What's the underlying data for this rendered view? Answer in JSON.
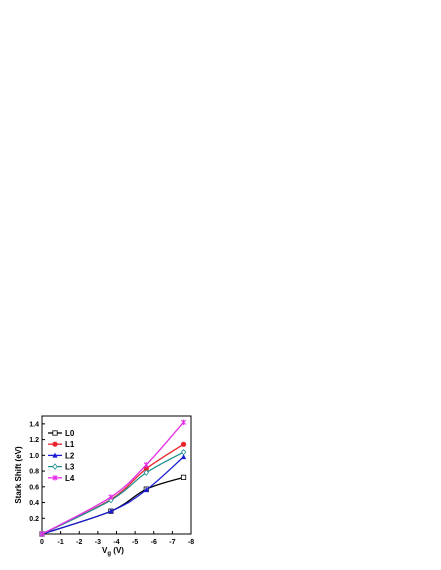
{
  "chart_data": {
    "type": "line",
    "title": "",
    "xlabel": "V",
    "xlabel_subscript": "g",
    "xlabel_unit": " (V)",
    "ylabel": "Stark Shift (eV)",
    "xlim": [
      0,
      -8
    ],
    "ylim": [
      0,
      1.5
    ],
    "x_ticks": [
      0,
      -1,
      -2,
      -3,
      -4,
      -5,
      -6,
      -7,
      -8
    ],
    "x_tick_labels": [
      "0",
      "-1",
      "-2",
      "-3",
      "-4",
      "-5",
      "-6",
      "-7",
      "-8"
    ],
    "y_ticks": [
      0.2,
      0.4,
      0.6,
      0.8,
      1.0,
      1.2,
      1.4
    ],
    "y_tick_labels": [
      "0.2",
      "0.4",
      "0.6",
      "0.8",
      "1.0",
      "1.2",
      "1.4"
    ],
    "x": [
      0,
      -3.7,
      -5.6,
      -7.6
    ],
    "legend_position": "top-left",
    "grid": false,
    "series": [
      {
        "name": "L0",
        "color": "#000000",
        "marker": "square-open",
        "values": [
          0,
          0.29,
          0.57,
          0.72
        ]
      },
      {
        "name": "L1",
        "color": "#e8232a",
        "marker": "circle",
        "values": [
          0,
          0.44,
          0.83,
          1.14
        ]
      },
      {
        "name": "L2",
        "color": "#1a1ad6",
        "marker": "triangle",
        "values": [
          0,
          0.29,
          0.56,
          0.98
        ]
      },
      {
        "name": "L3",
        "color": "#1f8f8f",
        "marker": "diamond-open",
        "values": [
          0,
          0.43,
          0.78,
          1.04
        ]
      },
      {
        "name": "L4",
        "color": "#e62ee6",
        "marker": "x",
        "values": [
          0,
          0.47,
          0.88,
          1.42
        ]
      }
    ]
  }
}
